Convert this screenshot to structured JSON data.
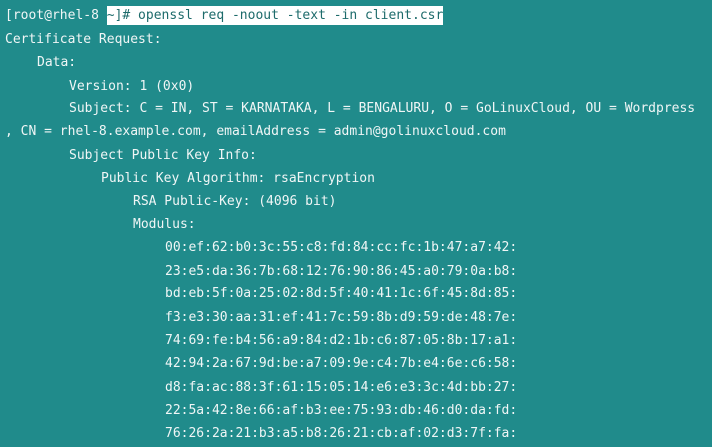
{
  "prompt": "[root@rhel-8",
  "command": "~]# openssl req -noout -text -in client.csr",
  "lines": [
    "Certificate Request:",
    "Data:",
    "Version: 1 (0x0)",
    "Subject: C = IN, ST = KARNATAKA, L = BENGALURU, O = GoLinuxCloud, OU = Wordpress",
    ", CN = rhel-8.example.com, emailAddress = admin@golinuxcloud.com",
    "Subject Public Key Info:",
    "Public Key Algorithm: rsaEncryption",
    "RSA Public-Key: (4096 bit)",
    "Modulus:",
    "00:ef:62:b0:3c:55:c8:fd:84:cc:fc:1b:47:a7:42:",
    "23:e5:da:36:7b:68:12:76:90:86:45:a0:79:0a:b8:",
    "bd:eb:5f:0a:25:02:8d:5f:40:41:1c:6f:45:8d:85:",
    "f3:e3:30:aa:31:ef:41:7c:59:8b:d9:59:de:48:7e:",
    "74:69:fe:b4:56:a9:84:d2:1b:c6:87:05:8b:17:a1:",
    "42:94:2a:67:9d:be:a7:09:9e:c4:7b:e4:6e:c6:58:",
    "d8:fa:ac:88:3f:61:15:05:14:e6:e3:3c:4d:bb:27:",
    "22:5a:42:8e:66:af:b3:ee:75:93:db:46:d0:da:fd:",
    "76:26:2a:21:b3:a5:b8:26:21:cb:af:02:d3:7f:fa:"
  ]
}
